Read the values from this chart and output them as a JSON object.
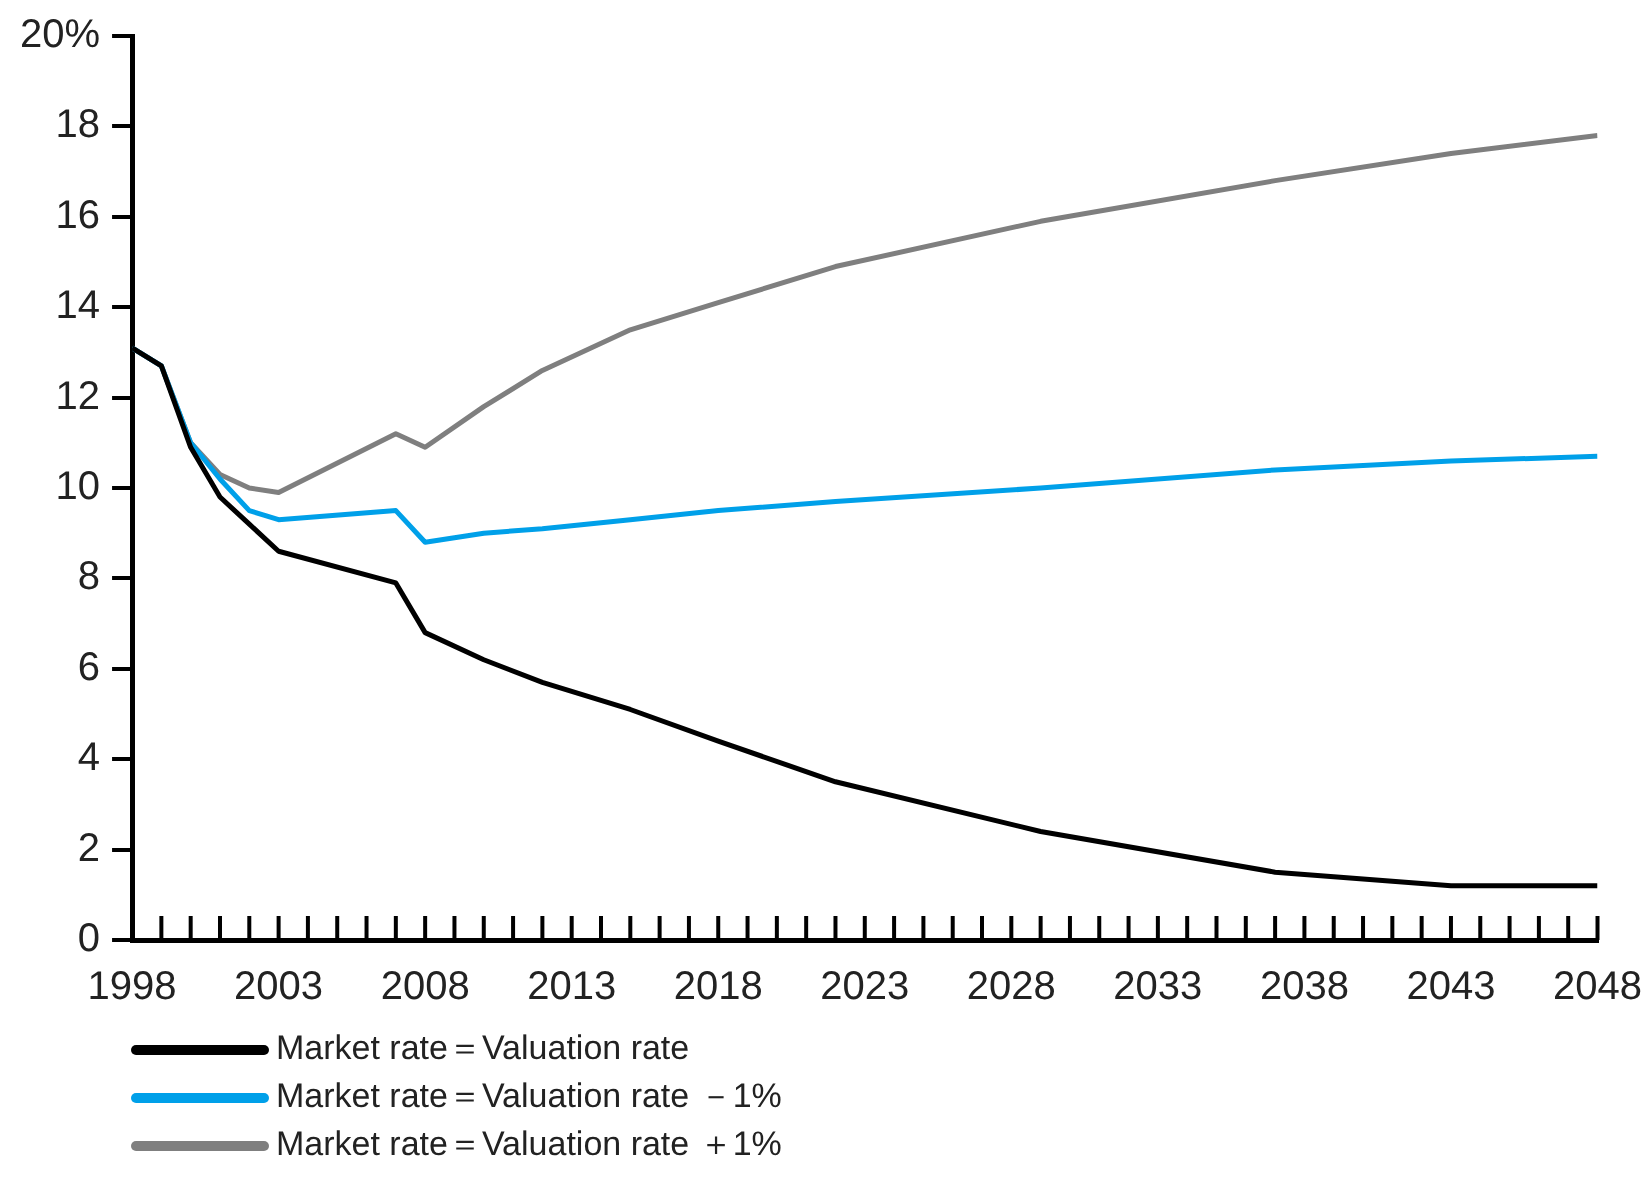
{
  "chart_data": {
    "type": "line",
    "x": [
      1998,
      1999,
      2000,
      2001,
      2002,
      2003,
      2007,
      2008,
      2010,
      2012,
      2015,
      2018,
      2022,
      2029,
      2037,
      2043,
      2048
    ],
    "series": [
      {
        "name": "Market rate＝Valuation rate",
        "color": "#000000",
        "values": [
          13.1,
          12.7,
          10.9,
          9.8,
          9.2,
          8.6,
          7.9,
          6.8,
          6.2,
          5.7,
          5.1,
          4.4,
          3.5,
          2.4,
          1.5,
          1.2,
          1.2
        ]
      },
      {
        "name": "Market rate＝Valuation rate －1%",
        "color": "#00a0e9",
        "values": [
          13.1,
          12.7,
          11.0,
          10.2,
          9.5,
          9.3,
          9.5,
          8.8,
          9.0,
          9.1,
          9.3,
          9.5,
          9.7,
          10.0,
          10.4,
          10.6,
          10.7
        ]
      },
      {
        "name": "Market rate＝Valuation rate ＋1%",
        "color": "#7f7f7f",
        "values": [
          13.1,
          12.7,
          11.0,
          10.3,
          10.0,
          9.9,
          11.2,
          10.9,
          11.8,
          12.6,
          13.5,
          14.1,
          14.9,
          15.9,
          16.8,
          17.4,
          17.8
        ]
      }
    ],
    "xlim": [
      1998,
      2048
    ],
    "xticks": [
      1998,
      {
        "value": 1999,
        "label": null
      },
      {
        "value": 2000,
        "label": null
      },
      {
        "value": 2001,
        "label": null
      },
      {
        "value": 2002,
        "label": null
      },
      2003,
      {
        "value": 2004,
        "label": null
      },
      {
        "value": 2005,
        "label": null
      },
      {
        "value": 2006,
        "label": null
      },
      {
        "value": 2007,
        "label": null
      },
      2008,
      {
        "value": 2009,
        "label": null
      },
      {
        "value": 2010,
        "label": null
      },
      {
        "value": 2011,
        "label": null
      },
      {
        "value": 2012,
        "label": null
      },
      2013,
      {
        "value": 2014,
        "label": null
      },
      {
        "value": 2015,
        "label": null
      },
      {
        "value": 2016,
        "label": null
      },
      {
        "value": 2017,
        "label": null
      },
      2018,
      {
        "value": 2019,
        "label": null
      },
      {
        "value": 2020,
        "label": null
      },
      {
        "value": 2021,
        "label": null
      },
      {
        "value": 2022,
        "label": null
      },
      2023,
      {
        "value": 2024,
        "label": null
      },
      {
        "value": 2025,
        "label": null
      },
      {
        "value": 2026,
        "label": null
      },
      {
        "value": 2027,
        "label": null
      },
      2028,
      {
        "value": 2029,
        "label": null
      },
      {
        "value": 2030,
        "label": null
      },
      {
        "value": 2031,
        "label": null
      },
      {
        "value": 2032,
        "label": null
      },
      2033,
      {
        "value": 2034,
        "label": null
      },
      {
        "value": 2035,
        "label": null
      },
      {
        "value": 2036,
        "label": null
      },
      {
        "value": 2037,
        "label": null
      },
      2038,
      {
        "value": 2039,
        "label": null
      },
      {
        "value": 2040,
        "label": null
      },
      {
        "value": 2041,
        "label": null
      },
      {
        "value": 2042,
        "label": null
      },
      2043,
      {
        "value": 2044,
        "label": null
      },
      {
        "value": 2045,
        "label": null
      },
      {
        "value": 2046,
        "label": null
      },
      {
        "value": 2047,
        "label": null
      },
      2048
    ],
    "ylim": [
      0,
      20
    ],
    "yticks": [
      0,
      2,
      4,
      6,
      8,
      10,
      12,
      14,
      16,
      18,
      {
        "value": 20,
        "label": "20%"
      }
    ],
    "grid": false,
    "legend": "bottom left",
    "marker": "none",
    "line_style": "solid"
  }
}
